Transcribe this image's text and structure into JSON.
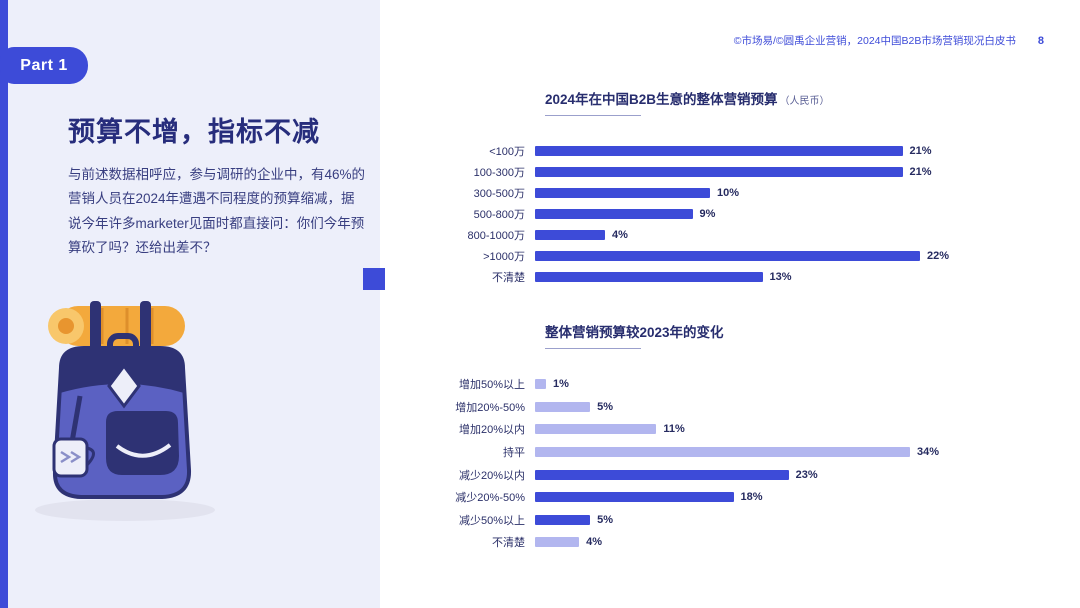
{
  "page": {
    "part_badge": "Part 1",
    "header_credit": "©市场易/©圆禹企业营销，2024中国B2B市场营销现况白皮书",
    "page_number": "8"
  },
  "left_panel": {
    "title": "预算不增，指标不减",
    "body": "与前述数据相呼应，参与调研的企业中，有46%的营销人员在2024年遭遇不同程度的预算缩减，据说今年许多marketer见面时都直接问：你们今年预算砍了吗？还给出差不？"
  },
  "colors": {
    "accent_blue": "#3D4BD8",
    "dark_navy": "#2A2F6E",
    "light_bar": "#B2B6EF",
    "panel_bg": "#EDEFFA"
  },
  "chart_data": [
    {
      "type": "bar",
      "orientation": "horizontal",
      "title": "2024年在中国B2B生意的整体营销预算",
      "title_suffix": "（人民币）",
      "unit": "%",
      "categories": [
        "<100万",
        "100-300万",
        "300-500万",
        "500-800万",
        "800-1000万",
        ">1000万",
        "不清楚"
      ],
      "values": [
        21,
        21,
        10,
        9,
        4,
        22,
        13
      ],
      "bar_colors": [
        "dark",
        "dark",
        "dark",
        "dark",
        "dark",
        "dark",
        "dark"
      ],
      "xlim": [
        0,
        25
      ],
      "legend": "none",
      "grid": false
    },
    {
      "type": "bar",
      "orientation": "horizontal",
      "title": "整体营销预算较2023年的变化",
      "title_suffix": "",
      "unit": "%",
      "categories": [
        "增加50%以上",
        "增加20%-50%",
        "增加20%以内",
        "持平",
        "减少20%以内",
        "减少20%-50%",
        "减少50%以上",
        "不清楚"
      ],
      "values": [
        1,
        5,
        11,
        34,
        23,
        18,
        5,
        4
      ],
      "bar_colors": [
        "light",
        "light",
        "light",
        "light",
        "dark",
        "dark",
        "dark",
        "light"
      ],
      "xlim": [
        0,
        35
      ],
      "legend": "none",
      "grid": false
    }
  ]
}
